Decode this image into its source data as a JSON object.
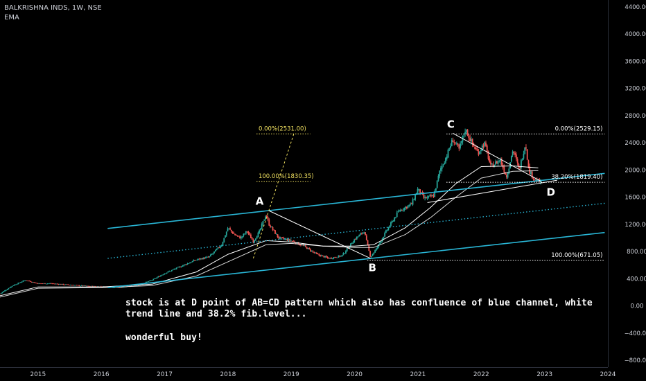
{
  "header": {
    "title": "BALKRISHNA INDS, 1W, NSE",
    "indicator": "EMA"
  },
  "annotation": {
    "line1": "stock is at D point of AB=CD pattern which also has confluence of blue channel, white",
    "line2": "trend line and 38.2% fib.level...",
    "line3": "wonderful buy!"
  },
  "colors": {
    "background": "#000000",
    "up_candle": "#26a69a",
    "down_candle": "#ef5350",
    "channel": "#29b6d6",
    "ema": "#ffffff",
    "fib_left": "#f0e060",
    "fib_right": "#ffffff",
    "axis_text": "#d1d4dc"
  },
  "chart_data": {
    "type": "candlestick",
    "title": "BALKRISHNA INDS, 1W, NSE",
    "ylim": [
      -900,
      4500
    ],
    "xlim": [
      2014.4,
      2024.0
    ],
    "y_ticks": [
      "4400.00",
      "4000.00",
      "3600.00",
      "3200.00",
      "2800.00",
      "2400.00",
      "2000.00",
      "1600.00",
      "1200.00",
      "800.00",
      "400.00",
      "0.00",
      "−400.00",
      "−800.00"
    ],
    "y_tick_values": [
      4400,
      4000,
      3600,
      3200,
      2800,
      2400,
      2000,
      1600,
      1200,
      800,
      400,
      0,
      -400,
      -800
    ],
    "x_ticks": [
      "2015",
      "2016",
      "2017",
      "2018",
      "2019",
      "2020",
      "2021",
      "2022",
      "2023",
      "2024"
    ],
    "x_tick_values": [
      2015,
      2016,
      2017,
      2018,
      2019,
      2020,
      2021,
      2022,
      2023,
      2024
    ],
    "price_path": [
      [
        2014.4,
        180
      ],
      [
        2014.6,
        300
      ],
      [
        2014.8,
        380
      ],
      [
        2015.0,
        330
      ],
      [
        2015.2,
        330
      ],
      [
        2015.5,
        310
      ],
      [
        2015.8,
        290
      ],
      [
        2016.0,
        285
      ],
      [
        2016.3,
        270
      ],
      [
        2016.6,
        310
      ],
      [
        2016.8,
        380
      ],
      [
        2017.0,
        480
      ],
      [
        2017.2,
        560
      ],
      [
        2017.5,
        680
      ],
      [
        2017.7,
        720
      ],
      [
        2017.9,
        900
      ],
      [
        2018.0,
        1150
      ],
      [
        2018.1,
        1050
      ],
      [
        2018.2,
        1000
      ],
      [
        2018.3,
        1100
      ],
      [
        2018.4,
        950
      ],
      [
        2018.5,
        1100
      ],
      [
        2018.6,
        1350
      ],
      [
        2018.65,
        1200
      ],
      [
        2018.8,
        1000
      ],
      [
        2019.0,
        960
      ],
      [
        2019.2,
        880
      ],
      [
        2019.4,
        760
      ],
      [
        2019.6,
        700
      ],
      [
        2019.8,
        740
      ],
      [
        2020.0,
        980
      ],
      [
        2020.15,
        1100
      ],
      [
        2020.25,
        720
      ],
      [
        2020.35,
        850
      ],
      [
        2020.5,
        1100
      ],
      [
        2020.7,
        1400
      ],
      [
        2020.9,
        1500
      ],
      [
        2021.0,
        1720
      ],
      [
        2021.1,
        1580
      ],
      [
        2021.25,
        1620
      ],
      [
        2021.35,
        2000
      ],
      [
        2021.45,
        2200
      ],
      [
        2021.55,
        2450
      ],
      [
        2021.65,
        2300
      ],
      [
        2021.75,
        2600
      ],
      [
        2021.85,
        2400
      ],
      [
        2021.95,
        2250
      ],
      [
        2022.05,
        2400
      ],
      [
        2022.15,
        2050
      ],
      [
        2022.3,
        2150
      ],
      [
        2022.4,
        1900
      ],
      [
        2022.5,
        2300
      ],
      [
        2022.6,
        2000
      ],
      [
        2022.7,
        2400
      ],
      [
        2022.75,
        2000
      ],
      [
        2022.85,
        1850
      ],
      [
        2022.95,
        1820
      ]
    ],
    "ema_fast_path": [
      [
        2014.4,
        150
      ],
      [
        2015.0,
        280
      ],
      [
        2016.0,
        280
      ],
      [
        2016.8,
        320
      ],
      [
        2017.5,
        500
      ],
      [
        2018.0,
        760
      ],
      [
        2018.6,
        960
      ],
      [
        2019.0,
        940
      ],
      [
        2019.5,
        880
      ],
      [
        2020.0,
        880
      ],
      [
        2020.3,
        900
      ],
      [
        2020.8,
        1150
      ],
      [
        2021.2,
        1450
      ],
      [
        2021.6,
        1800
      ],
      [
        2022.0,
        2050
      ],
      [
        2022.5,
        2060
      ],
      [
        2022.9,
        2030
      ]
    ],
    "ema_slow_path": [
      [
        2014.4,
        130
      ],
      [
        2015.0,
        260
      ],
      [
        2016.0,
        270
      ],
      [
        2016.8,
        300
      ],
      [
        2017.5,
        440
      ],
      [
        2018.0,
        650
      ],
      [
        2018.6,
        900
      ],
      [
        2019.0,
        920
      ],
      [
        2019.5,
        880
      ],
      [
        2020.0,
        860
      ],
      [
        2020.3,
        860
      ],
      [
        2020.8,
        1050
      ],
      [
        2021.2,
        1300
      ],
      [
        2021.6,
        1600
      ],
      [
        2022.0,
        1880
      ],
      [
        2022.5,
        1980
      ],
      [
        2022.9,
        1990
      ]
    ],
    "channel": {
      "upper": [
        [
          2016.1,
          1140
        ],
        [
          2023.95,
          1950
        ]
      ],
      "lower": [
        [
          2016.1,
          270
        ],
        [
          2023.95,
          1080
        ]
      ],
      "middle": [
        [
          2016.1,
          700
        ],
        [
          2023.95,
          1510
        ]
      ]
    },
    "trend_line": [
      [
        2021.15,
        1520
      ],
      [
        2023.2,
        1850
      ]
    ],
    "pattern_lines": [
      [
        [
          2018.65,
          1400
        ],
        [
          2020.25,
          700
        ]
      ],
      [
        [
          2021.55,
          2540
        ],
        [
          2022.95,
          1830
        ]
      ]
    ],
    "pattern_points": [
      {
        "label": "A",
        "x": 2018.5,
        "y": 1490
      },
      {
        "label": "B",
        "x": 2020.28,
        "y": 510
      },
      {
        "label": "C",
        "x": 2021.52,
        "y": 2620
      },
      {
        "label": "D",
        "x": 2023.1,
        "y": 1620
      }
    ],
    "fib_left": [
      {
        "label": "0.00%(2531.00)",
        "value": 2531.0,
        "x": [
          2018.45,
          2019.3
        ]
      },
      {
        "label": "100.00%(1830.35)",
        "value": 1830.35,
        "x": [
          2018.45,
          2019.3
        ]
      }
    ],
    "fib_right": [
      {
        "label": "0.00%(2529.15)",
        "value": 2529.15,
        "x": [
          2021.45,
          2023.95
        ]
      },
      {
        "label": "38.20%(1819.40)",
        "value": 1819.4,
        "x": [
          2021.45,
          2023.95
        ]
      },
      {
        "label": "100.00%(671.05)",
        "value": 671.05,
        "x": [
          2020.2,
          2023.95
        ]
      }
    ],
    "extension_line": [
      [
        2018.4,
        700
      ],
      [
        2019.05,
        2560
      ]
    ]
  }
}
